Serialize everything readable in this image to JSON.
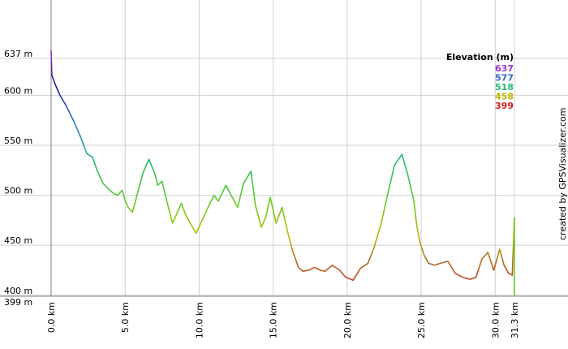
{
  "chart_data": {
    "type": "line",
    "xlabel": "",
    "ylabel": "",
    "x_unit": "km",
    "y_unit": "m",
    "xlim": [
      0,
      31.3
    ],
    "ylim": [
      399,
      645
    ],
    "grid": true,
    "x_ticks": [
      {
        "value": 0,
        "label": "0.0 km"
      },
      {
        "value": 5,
        "label": "5.0 km"
      },
      {
        "value": 10,
        "label": "10.0 km"
      },
      {
        "value": 15,
        "label": "15.0 km"
      },
      {
        "value": 20,
        "label": "20.0 km"
      },
      {
        "value": 25,
        "label": "25.0 km"
      },
      {
        "value": 30,
        "label": "30.0 km"
      },
      {
        "value": 31.3,
        "label": "31.3 km"
      }
    ],
    "y_ticks": [
      {
        "value": 399,
        "label": "399 m"
      },
      {
        "value": 400,
        "label": "400 m"
      },
      {
        "value": 450,
        "label": "450 m"
      },
      {
        "value": 500,
        "label": "500 m"
      },
      {
        "value": 550,
        "label": "550 m"
      },
      {
        "value": 600,
        "label": "600 m"
      },
      {
        "value": 637,
        "label": "637 m"
      }
    ],
    "legend": {
      "title": "Elevation (m)",
      "position": "top-right",
      "entries": [
        {
          "label": "637",
          "color": "#9933cc"
        },
        {
          "label": "577",
          "color": "#3366cc"
        },
        {
          "label": "518",
          "color": "#22bb77"
        },
        {
          "label": "458",
          "color": "#bbbb00"
        },
        {
          "label": "399",
          "color": "#cc2222"
        }
      ]
    },
    "credit": "created by GPSVisualizer.com",
    "series": [
      {
        "x": [
          0,
          0.05,
          0.1,
          0.3,
          0.6,
          1.0,
          1.5,
          2.0,
          2.4,
          2.8,
          3.1,
          3.5,
          3.9,
          4.2,
          4.5,
          4.8,
          5.0,
          5.2,
          5.5,
          5.8,
          6.2,
          6.6,
          7.0,
          7.2,
          7.5,
          7.8,
          8.2,
          8.5,
          8.8,
          9.1,
          9.4,
          9.8,
          10.2,
          10.6,
          11.0,
          11.3,
          11.8,
          12.3,
          12.6,
          13.0,
          13.5,
          13.8,
          14.2,
          14.5,
          14.8,
          15.2,
          15.6,
          16.0,
          16.3,
          16.7,
          17.0,
          17.4,
          17.8,
          18.2,
          18.5,
          19.0,
          19.5,
          19.9,
          20.4,
          20.9,
          21.4,
          21.8,
          22.3,
          22.8,
          23.2,
          23.7,
          24.1,
          24.5,
          24.7,
          24.9,
          25.2,
          25.5,
          25.9,
          26.3,
          26.8,
          27.3,
          27.8,
          28.3,
          28.7,
          29.1,
          29.5,
          29.9,
          30.3,
          30.6,
          30.9,
          31.15,
          31.3
        ],
        "y": [
          645,
          620,
          618,
          610,
          600,
          590,
          575,
          558,
          542,
          538,
          525,
          512,
          506,
          502,
          500,
          505,
          495,
          488,
          483,
          500,
          522,
          536,
          522,
          510,
          514,
          495,
          472,
          482,
          492,
          480,
          472,
          462,
          475,
          488,
          500,
          494,
          510,
          496,
          488,
          512,
          524,
          490,
          468,
          478,
          498,
          472,
          488,
          462,
          445,
          428,
          424,
          425,
          428,
          425,
          424,
          430,
          425,
          418,
          415,
          427,
          432,
          447,
          472,
          505,
          530,
          541,
          520,
          495,
          470,
          454,
          440,
          432,
          430,
          432,
          434,
          422,
          418,
          416,
          418,
          436,
          443,
          425,
          446,
          430,
          422,
          420,
          478
        ]
      }
    ]
  }
}
